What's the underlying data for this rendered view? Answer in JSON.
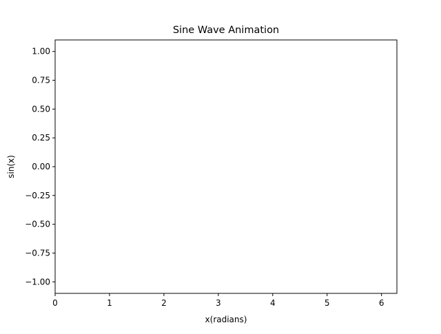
{
  "chart_data": {
    "type": "line",
    "title": "Sine Wave Animation",
    "xlabel": "x(radians)",
    "ylabel": "sin(x)",
    "xlim": [
      0,
      6.283
    ],
    "ylim": [
      -1.1,
      1.1
    ],
    "x_ticks": [
      0,
      1,
      2,
      3,
      4,
      5,
      6
    ],
    "x_tick_labels": [
      "0",
      "1",
      "2",
      "3",
      "4",
      "5",
      "6"
    ],
    "y_ticks": [
      1.0,
      0.75,
      0.5,
      0.25,
      0.0,
      -0.25,
      -0.5,
      -0.75,
      -1.0
    ],
    "y_tick_labels": [
      "1.00",
      "0.75",
      "0.50",
      "0.25",
      "0.00",
      "−0.25",
      "−0.50",
      "−0.75",
      "−1.00"
    ],
    "series": [],
    "grid": false,
    "legend": "none"
  },
  "colors": {
    "background": "#ffffff",
    "axes": "#000000",
    "text": "#000000"
  }
}
